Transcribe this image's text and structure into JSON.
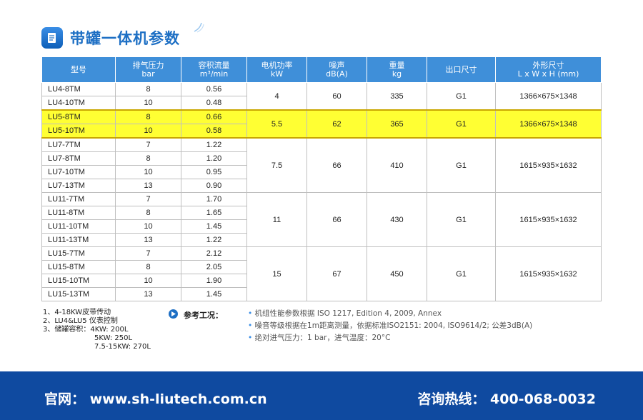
{
  "header": {
    "title": "带罐一体机参数",
    "icon": "document-pen-icon"
  },
  "table": {
    "columns": [
      {
        "line1": "型号",
        "line2": ""
      },
      {
        "line1": "排气压力",
        "line2": "bar"
      },
      {
        "line1": "容积流量",
        "line2": "m³/min"
      },
      {
        "line1": "电机功率",
        "line2": "kW"
      },
      {
        "line1": "噪声",
        "line2": "dB(A)"
      },
      {
        "line1": "重量",
        "line2": "kg"
      },
      {
        "line1": "出口尺寸",
        "line2": ""
      },
      {
        "line1": "外形尺寸",
        "line2": "L x W x H (mm)"
      }
    ],
    "rows": [
      {
        "model": "LU4-8TM",
        "pressure": "8",
        "flow": "0.56"
      },
      {
        "model": "LU4-10TM",
        "pressure": "10",
        "flow": "0.48"
      },
      {
        "model": "LU5-8TM",
        "pressure": "8",
        "flow": "0.66"
      },
      {
        "model": "LU5-10TM",
        "pressure": "10",
        "flow": "0.58"
      },
      {
        "model": "LU7-7TM",
        "pressure": "7",
        "flow": "1.22"
      },
      {
        "model": "LU7-8TM",
        "pressure": "8",
        "flow": "1.20"
      },
      {
        "model": "LU7-10TM",
        "pressure": "10",
        "flow": "0.95"
      },
      {
        "model": "LU7-13TM",
        "pressure": "13",
        "flow": "0.90"
      },
      {
        "model": "LU11-7TM",
        "pressure": "7",
        "flow": "1.70"
      },
      {
        "model": "LU11-8TM",
        "pressure": "8",
        "flow": "1.65"
      },
      {
        "model": "LU11-10TM",
        "pressure": "10",
        "flow": "1.45"
      },
      {
        "model": "LU11-13TM",
        "pressure": "13",
        "flow": "1.22"
      },
      {
        "model": "LU15-7TM",
        "pressure": "7",
        "flow": "2.12"
      },
      {
        "model": "LU15-8TM",
        "pressure": "8",
        "flow": "2.05"
      },
      {
        "model": "LU15-10TM",
        "pressure": "10",
        "flow": "1.90"
      },
      {
        "model": "LU15-13TM",
        "pressure": "13",
        "flow": "1.45"
      }
    ],
    "groups": [
      {
        "power": "4",
        "noise": "60",
        "weight": "335",
        "outlet": "G1",
        "dims": "1366×675×1348"
      },
      {
        "power": "5.5",
        "noise": "62",
        "weight": "365",
        "outlet": "G1",
        "dims": "1366×675×1348"
      },
      {
        "power": "7.5",
        "noise": "66",
        "weight": "410",
        "outlet": "G1",
        "dims": "1615×935×1632"
      },
      {
        "power": "11",
        "noise": "66",
        "weight": "430",
        "outlet": "G1",
        "dims": "1615×935×1632"
      },
      {
        "power": "15",
        "noise": "67",
        "weight": "450",
        "outlet": "G1",
        "dims": "1615×935×1632"
      }
    ]
  },
  "notes": {
    "lines": [
      "1、4-18KW皮带传动",
      "2、LU4&LU5 仪表控制",
      "3、储罐容积：4KW: 200L",
      "5KW: 250L",
      "7.5-15KW: 270L"
    ]
  },
  "reference": {
    "label": "参考工况：",
    "items": [
      "机组性能参数根据 ISO 1217, Edition 4, 2009, Annex",
      "噪音等级根据在1m距离测量，依据标准ISO2151: 2004, ISO9614/2; 公差3dB(A)",
      "绝对进气压力：1 bar，进气温度：20°C"
    ]
  },
  "footer": {
    "website": "官网：  www.sh-liutech.com.cn",
    "hotline": "咨询热线：  400-068-0032"
  },
  "colors": {
    "header_blue": "#3f8fd9",
    "highlight": "#ffff33",
    "footer_bg": "#0f4aa0",
    "title": "#1d6fc4"
  }
}
